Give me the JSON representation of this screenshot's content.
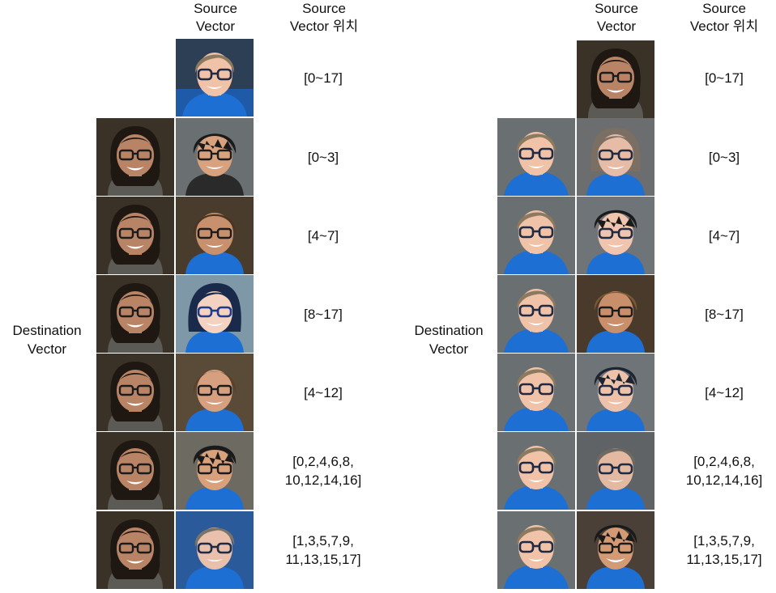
{
  "figure": {
    "panels": [
      {
        "id": "left",
        "header_source_vector": "Source\nVector",
        "header_source_position": "Source\nVector 위치",
        "destination_label": "Destination\nVector",
        "rows": [
          {
            "range": "[0~17]"
          },
          {
            "range": "[0~3]"
          },
          {
            "range": "[4~7]"
          },
          {
            "range": "[8~17]"
          },
          {
            "range": "[4~12]"
          },
          {
            "range": "[0,2,4,6,8,\n10,12,14,16]"
          },
          {
            "range": "[1,3,5,7,9,\n11,13,15,17]"
          }
        ]
      },
      {
        "id": "right",
        "header_source_vector": "Source\nVector",
        "header_source_position": "Source\nVector 위치",
        "destination_label": "Destination\nVector",
        "rows": [
          {
            "range": "[0~17]"
          },
          {
            "range": "[0~3]"
          },
          {
            "range": "[4~7]"
          },
          {
            "range": "[8~17]"
          },
          {
            "range": "[4~12]"
          },
          {
            "range": "[0,2,4,6,8,\n10,12,14,16]"
          },
          {
            "range": "[1,3,5,7,9,\n11,13,15,17]"
          }
        ]
      }
    ]
  },
  "faces": {
    "woman": {
      "bg": "#3a3226",
      "skin": "#b98466",
      "hair": "#1f1812",
      "shirt": "#5b5a55",
      "glasses": "#1b1b1b"
    },
    "boy": {
      "bg": "#6a6f72",
      "skin": "#f0c2a8",
      "hair": "#8c7a60",
      "shirt": "#1f6fd1",
      "glasses": "#1f2a44"
    }
  }
}
